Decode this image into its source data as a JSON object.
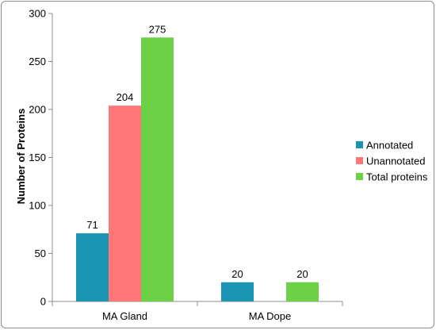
{
  "chart_data": {
    "type": "bar",
    "title": "",
    "xlabel": "",
    "ylabel": "Number of Proteins",
    "ylim": [
      0,
      300
    ],
    "yticks": [
      0,
      50,
      100,
      150,
      200,
      250,
      300
    ],
    "categories": [
      "MA Gland",
      "MA Dope"
    ],
    "series": [
      {
        "name": "Annotated",
        "color": "#1a94b0",
        "values": [
          71,
          20
        ]
      },
      {
        "name": "Unannotated",
        "color": "#ff7676",
        "values": [
          204,
          0
        ]
      },
      {
        "name": "Total proteins",
        "color": "#6dd147",
        "values": [
          275,
          20
        ]
      }
    ],
    "data_labels": [
      [
        "71",
        "20"
      ],
      [
        "204",
        ""
      ],
      [
        "275",
        "20"
      ]
    ],
    "legend_position": "right",
    "grid": false
  }
}
